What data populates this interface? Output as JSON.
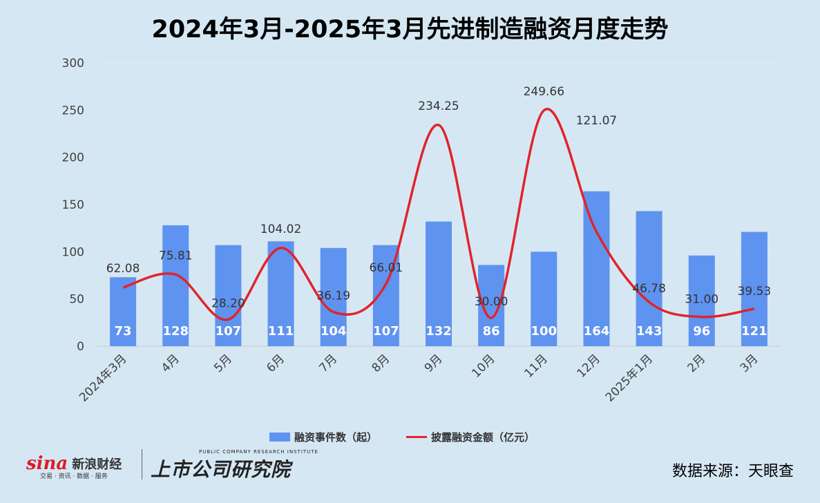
{
  "header": {
    "title": "2024年3月-2025年3月先进制造融资月度走势"
  },
  "legend": {
    "bar_label": "融资事件数（起）",
    "line_label": "披露融资金额（亿元）"
  },
  "footer": {
    "sina_mark": "sina",
    "sina_name": "新浪财经",
    "sina_sub": "交易 · 资讯 · 数据 · 服务",
    "research_en": "PUBLIC COMPANY RESEARCH INSTITUTE",
    "research_cn": "上市公司研究院",
    "source": "数据来源：天眼查"
  },
  "colors": {
    "bar": "#5f93f0",
    "line": "#e0242a",
    "background": "#d6e7f4"
  },
  "chart_data": {
    "type": "bar",
    "title": "2024年3月-2025年3月先进制造融资月度走势",
    "categories": [
      "2024年3月",
      "4月",
      "5月",
      "6月",
      "7月",
      "8月",
      "9月",
      "10月",
      "11月",
      "12月",
      "2025年1月",
      "2月",
      "3月"
    ],
    "series": [
      {
        "name": "融资事件数（起）",
        "type": "bar",
        "values": [
          73,
          128,
          107,
          111,
          104,
          107,
          132,
          86,
          100,
          164,
          143,
          96,
          121
        ]
      },
      {
        "name": "披露融资金额（亿元）",
        "type": "line",
        "smooth": true,
        "values": [
          62.08,
          75.81,
          28.2,
          104.02,
          36.19,
          66.01,
          234.25,
          30.0,
          249.66,
          121.07,
          46.78,
          31.0,
          39.53
        ],
        "labels": [
          "62.08",
          "75.81",
          "28.20",
          "104.02",
          "36.19",
          "66.01",
          "234.25",
          "30.00",
          "249.66",
          "121.07",
          "46.78",
          "31.00",
          "39.53"
        ]
      }
    ],
    "yticks": [
      "0",
      "50",
      "100",
      "150",
      "200",
      "250",
      "300"
    ],
    "ylim": [
      0,
      300
    ],
    "grid": true,
    "legend_position": "bottom"
  }
}
